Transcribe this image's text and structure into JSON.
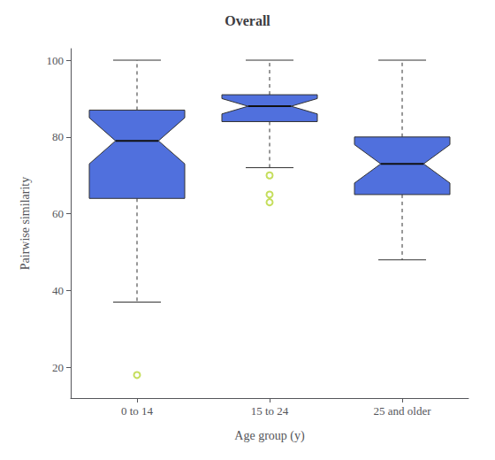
{
  "chart_data": {
    "type": "boxplot",
    "title": "Overall",
    "xlabel": "Age group (y)",
    "ylabel": "Pairwise similarity",
    "categories": [
      "0 to 14",
      "15 to 24",
      "25 and older"
    ],
    "boxes": [
      {
        "whisker_low": 37,
        "q1": 64,
        "median": 79,
        "q3": 87,
        "whisker_high": 100,
        "notch_low": 73,
        "notch_high": 85,
        "outliers": [
          18
        ]
      },
      {
        "whisker_low": 72,
        "q1": 84,
        "median": 88,
        "q3": 91,
        "whisker_high": 100,
        "notch_low": 86,
        "notch_high": 90,
        "outliers": [
          63,
          65,
          70
        ]
      },
      {
        "whisker_low": 48,
        "q1": 65,
        "median": 73,
        "q3": 80,
        "whisker_high": 100,
        "notch_low": 68,
        "notch_high": 78,
        "outliers": []
      }
    ],
    "ylim": [
      12,
      103
    ],
    "yticks": [
      20,
      40,
      60,
      80,
      100
    ],
    "grid": false
  }
}
